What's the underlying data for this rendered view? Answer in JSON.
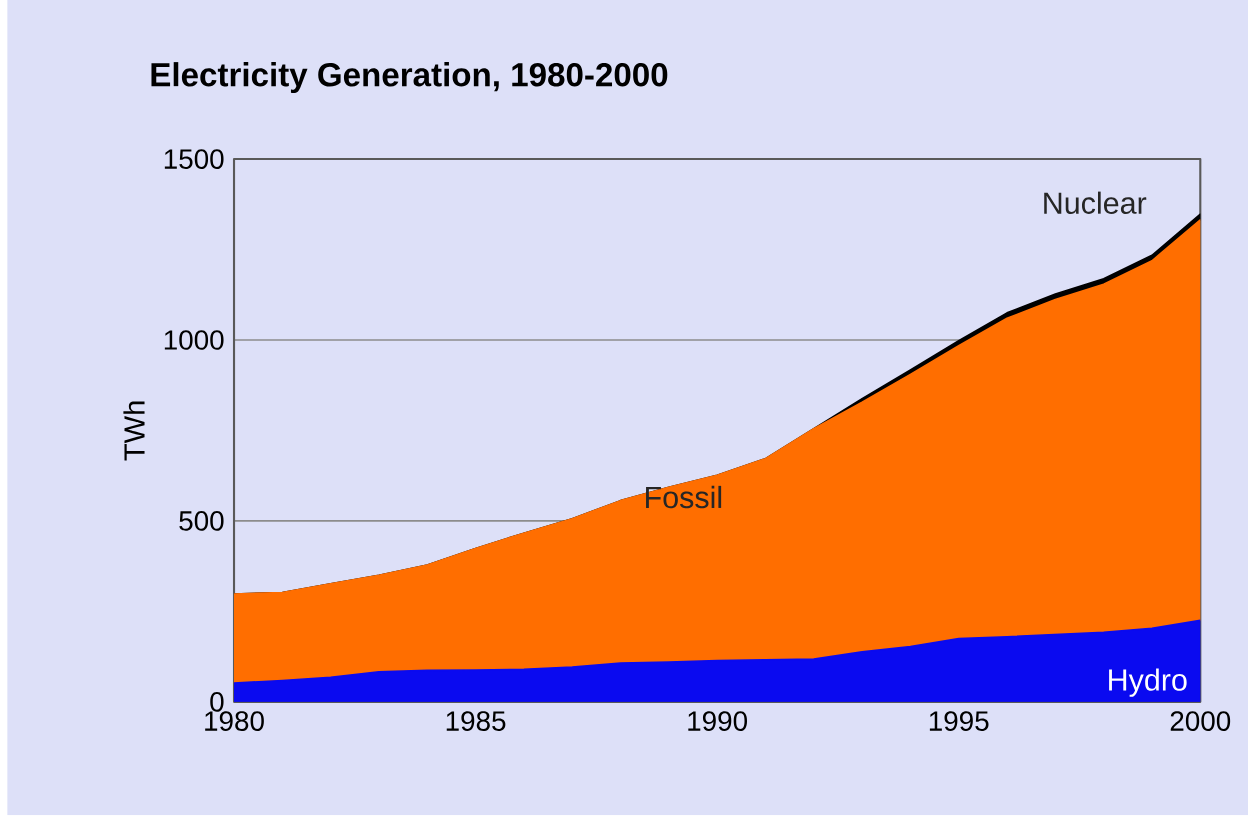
{
  "chart_data": {
    "type": "area",
    "title": "Electricity Generation, 1980-2000",
    "ylabel": "TWh",
    "stacked": true,
    "grid": "y",
    "legend": false,
    "x": [
      1980,
      1981,
      1982,
      1983,
      1984,
      1985,
      1986,
      1987,
      1988,
      1989,
      1990,
      1991,
      1992,
      1993,
      1994,
      1995,
      1996,
      1997,
      1998,
      1999,
      2000
    ],
    "series": [
      {
        "name": "Hydro",
        "color": "#0a0af0",
        "values": [
          52,
          59,
          68,
          83,
          87,
          88,
          90,
          96,
          107,
          110,
          114,
          116,
          118,
          138,
          153,
          175,
          180,
          186,
          192,
          203,
          225
        ]
      },
      {
        "name": "Fossil",
        "color": "#ff6e00",
        "values": [
          246,
          243,
          258,
          267,
          291,
          336,
          376,
          410,
          449,
          483,
          512,
          556,
          637,
          690,
          752,
          809,
          880,
          926,
          962,
          1016,
          1107
        ]
      },
      {
        "name": "Nuclear",
        "color": "#000000",
        "values": [
          0,
          0,
          0,
          0,
          0,
          0,
          0,
          0,
          0,
          0,
          0,
          0,
          0,
          10,
          12,
          14,
          15,
          15,
          15,
          15,
          16
        ]
      }
    ],
    "xlim": [
      1980,
      2000
    ],
    "xticks": [
      1980,
      1985,
      1990,
      1995,
      2000
    ],
    "ylim": [
      0,
      1500
    ],
    "yticks": [
      0,
      500,
      1000,
      1500
    ]
  }
}
